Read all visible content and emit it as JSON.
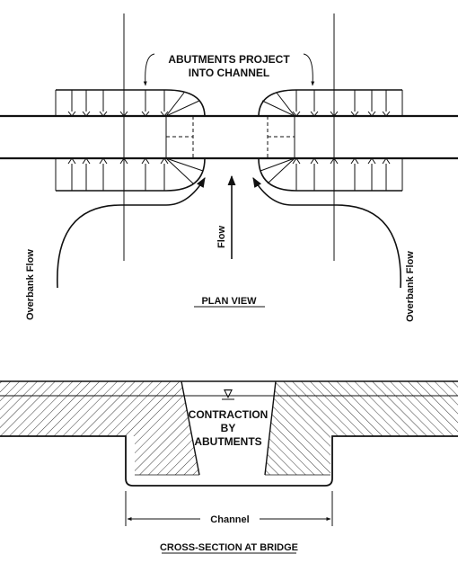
{
  "plan": {
    "callout_line1": "ABUTMENTS PROJECT",
    "callout_line2": "INTO CHANNEL",
    "flow_center": "Flow",
    "overbank_left": "Overbank Flow",
    "overbank_right": "Overbank Flow",
    "view_title": "PLAN VIEW"
  },
  "section": {
    "label_line1": "CONTRACTION",
    "label_line2": "BY",
    "label_line3": "ABUTMENTS",
    "channel_label": "Channel",
    "view_title": "CROSS-SECTION AT BRIDGE",
    "water_symbol": "▽"
  }
}
